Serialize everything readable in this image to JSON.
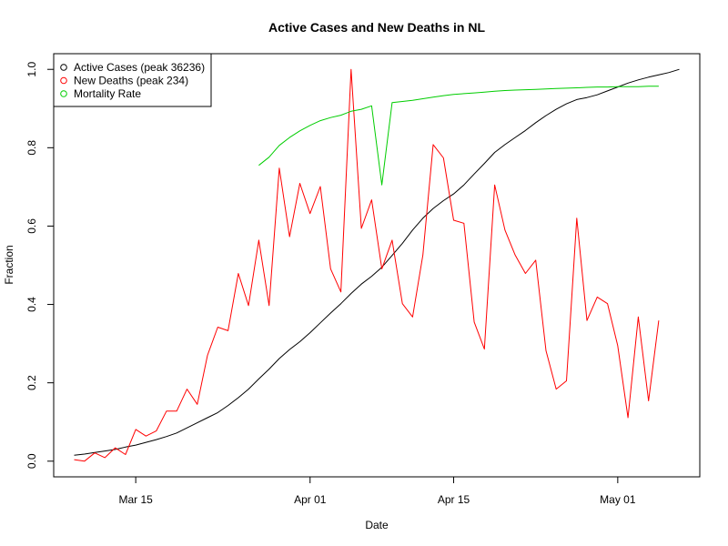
{
  "chart_data": {
    "type": "line",
    "title": "Active Cases and New Deaths in NL",
    "xlabel": "Date",
    "ylabel": "Fraction",
    "x_range": [
      "2020-03-07",
      "2020-05-09"
    ],
    "ylim": [
      -0.04,
      1.04
    ],
    "x_ticks": [
      {
        "date": "2020-03-15",
        "label": "Mar 15"
      },
      {
        "date": "2020-04-01",
        "label": "Apr 01"
      },
      {
        "date": "2020-04-15",
        "label": "Apr 15"
      },
      {
        "date": "2020-05-01",
        "label": "May 01"
      }
    ],
    "y_ticks": [
      {
        "value": 0.0,
        "label": "0.0"
      },
      {
        "value": 0.2,
        "label": "0.2"
      },
      {
        "value": 0.4,
        "label": "0.4"
      },
      {
        "value": 0.6,
        "label": "0.6"
      },
      {
        "value": 0.8,
        "label": "0.8"
      },
      {
        "value": 1.0,
        "label": "1.0"
      }
    ],
    "grid": false,
    "legend": {
      "position": "top-left"
    },
    "series": [
      {
        "name": "Active Cases (peak 36236)",
        "color": "#000000",
        "points": [
          [
            "2020-03-09",
            0.015
          ],
          [
            "2020-03-10",
            0.018
          ],
          [
            "2020-03-11",
            0.022
          ],
          [
            "2020-03-12",
            0.026
          ],
          [
            "2020-03-13",
            0.03
          ],
          [
            "2020-03-14",
            0.036
          ],
          [
            "2020-03-15",
            0.041
          ],
          [
            "2020-03-16",
            0.048
          ],
          [
            "2020-03-17",
            0.055
          ],
          [
            "2020-03-18",
            0.063
          ],
          [
            "2020-03-19",
            0.072
          ],
          [
            "2020-03-20",
            0.085
          ],
          [
            "2020-03-21",
            0.098
          ],
          [
            "2020-03-22",
            0.111
          ],
          [
            "2020-03-23",
            0.124
          ],
          [
            "2020-03-24",
            0.142
          ],
          [
            "2020-03-25",
            0.162
          ],
          [
            "2020-03-26",
            0.184
          ],
          [
            "2020-03-27",
            0.21
          ],
          [
            "2020-03-28",
            0.235
          ],
          [
            "2020-03-29",
            0.262
          ],
          [
            "2020-03-30",
            0.285
          ],
          [
            "2020-03-31",
            0.305
          ],
          [
            "2020-04-01",
            0.328
          ],
          [
            "2020-04-02",
            0.353
          ],
          [
            "2020-04-03",
            0.378
          ],
          [
            "2020-04-04",
            0.402
          ],
          [
            "2020-04-05",
            0.428
          ],
          [
            "2020-04-06",
            0.452
          ],
          [
            "2020-04-07",
            0.472
          ],
          [
            "2020-04-08",
            0.495
          ],
          [
            "2020-04-09",
            0.525
          ],
          [
            "2020-04-10",
            0.556
          ],
          [
            "2020-04-11",
            0.59
          ],
          [
            "2020-04-12",
            0.62
          ],
          [
            "2020-04-13",
            0.645
          ],
          [
            "2020-04-14",
            0.665
          ],
          [
            "2020-04-15",
            0.682
          ],
          [
            "2020-04-16",
            0.705
          ],
          [
            "2020-04-17",
            0.733
          ],
          [
            "2020-04-18",
            0.76
          ],
          [
            "2020-04-19",
            0.788
          ],
          [
            "2020-04-20",
            0.808
          ],
          [
            "2020-04-21",
            0.826
          ],
          [
            "2020-04-22",
            0.844
          ],
          [
            "2020-04-23",
            0.864
          ],
          [
            "2020-04-24",
            0.882
          ],
          [
            "2020-04-25",
            0.898
          ],
          [
            "2020-04-26",
            0.912
          ],
          [
            "2020-04-27",
            0.923
          ],
          [
            "2020-04-28",
            0.928
          ],
          [
            "2020-04-29",
            0.935
          ],
          [
            "2020-04-30",
            0.945
          ],
          [
            "2020-05-01",
            0.955
          ],
          [
            "2020-05-02",
            0.965
          ],
          [
            "2020-05-03",
            0.973
          ],
          [
            "2020-05-04",
            0.98
          ],
          [
            "2020-05-05",
            0.986
          ],
          [
            "2020-05-06",
            0.992
          ],
          [
            "2020-05-07",
            1.0
          ]
        ]
      },
      {
        "name": "New Deaths (peak 234)",
        "color": "#ff0000",
        "points": [
          [
            "2020-03-09",
            0.004
          ],
          [
            "2020-03-10",
            0.0
          ],
          [
            "2020-03-11",
            0.021
          ],
          [
            "2020-03-12",
            0.009
          ],
          [
            "2020-03-13",
            0.034
          ],
          [
            "2020-03-14",
            0.017
          ],
          [
            "2020-03-15",
            0.081
          ],
          [
            "2020-03-16",
            0.064
          ],
          [
            "2020-03-17",
            0.077
          ],
          [
            "2020-03-18",
            0.128
          ],
          [
            "2020-03-19",
            0.128
          ],
          [
            "2020-03-20",
            0.184
          ],
          [
            "2020-03-21",
            0.145
          ],
          [
            "2020-03-22",
            0.27
          ],
          [
            "2020-03-23",
            0.342
          ],
          [
            "2020-03-24",
            0.333
          ],
          [
            "2020-03-25",
            0.479
          ],
          [
            "2020-03-26",
            0.397
          ],
          [
            "2020-03-27",
            0.564
          ],
          [
            "2020-03-28",
            0.397
          ],
          [
            "2020-03-29",
            0.748
          ],
          [
            "2020-03-30",
            0.573
          ],
          [
            "2020-03-31",
            0.709
          ],
          [
            "2020-04-01",
            0.632
          ],
          [
            "2020-04-02",
            0.701
          ],
          [
            "2020-04-03",
            0.491
          ],
          [
            "2020-04-04",
            0.432
          ],
          [
            "2020-04-05",
            1.0
          ],
          [
            "2020-04-06",
            0.594
          ],
          [
            "2020-04-07",
            0.667
          ],
          [
            "2020-04-08",
            0.491
          ],
          [
            "2020-04-09",
            0.564
          ],
          [
            "2020-04-10",
            0.402
          ],
          [
            "2020-04-11",
            0.368
          ],
          [
            "2020-04-12",
            0.526
          ],
          [
            "2020-04-13",
            0.808
          ],
          [
            "2020-04-14",
            0.774
          ],
          [
            "2020-04-15",
            0.615
          ],
          [
            "2020-04-16",
            0.607
          ],
          [
            "2020-04-17",
            0.355
          ],
          [
            "2020-04-18",
            0.286
          ],
          [
            "2020-04-19",
            0.705
          ],
          [
            "2020-04-20",
            0.59
          ],
          [
            "2020-04-21",
            0.526
          ],
          [
            "2020-04-22",
            0.479
          ],
          [
            "2020-04-23",
            0.513
          ],
          [
            "2020-04-24",
            0.282
          ],
          [
            "2020-04-25",
            0.184
          ],
          [
            "2020-04-26",
            0.205
          ],
          [
            "2020-04-27",
            0.62
          ],
          [
            "2020-04-28",
            0.359
          ],
          [
            "2020-04-29",
            0.419
          ],
          [
            "2020-04-30",
            0.402
          ],
          [
            "2020-05-01",
            0.295
          ],
          [
            "2020-05-02",
            0.111
          ],
          [
            "2020-05-03",
            0.368
          ],
          [
            "2020-05-04",
            0.154
          ],
          [
            "2020-05-05",
            0.359
          ]
        ]
      },
      {
        "name": "Mortality Rate",
        "color": "#00cd00",
        "points": [
          [
            "2020-03-27",
            0.755
          ],
          [
            "2020-03-28",
            0.776
          ],
          [
            "2020-03-29",
            0.806
          ],
          [
            "2020-03-30",
            0.826
          ],
          [
            "2020-03-31",
            0.843
          ],
          [
            "2020-04-01",
            0.857
          ],
          [
            "2020-04-02",
            0.869
          ],
          [
            "2020-04-03",
            0.877
          ],
          [
            "2020-04-04",
            0.883
          ],
          [
            "2020-04-05",
            0.893
          ],
          [
            "2020-04-06",
            0.898
          ],
          [
            "2020-04-07",
            0.907
          ],
          [
            "2020-04-08",
            0.705
          ],
          [
            "2020-04-09",
            0.915
          ],
          [
            "2020-04-10",
            0.918
          ],
          [
            "2020-04-11",
            0.921
          ],
          [
            "2020-04-12",
            0.925
          ],
          [
            "2020-04-13",
            0.929
          ],
          [
            "2020-04-14",
            0.933
          ],
          [
            "2020-04-15",
            0.936
          ],
          [
            "2020-04-16",
            0.938
          ],
          [
            "2020-04-17",
            0.94
          ],
          [
            "2020-04-18",
            0.942
          ],
          [
            "2020-04-19",
            0.944
          ],
          [
            "2020-04-20",
            0.946
          ],
          [
            "2020-04-21",
            0.947
          ],
          [
            "2020-04-22",
            0.948
          ],
          [
            "2020-04-23",
            0.949
          ],
          [
            "2020-04-24",
            0.95
          ],
          [
            "2020-04-25",
            0.951
          ],
          [
            "2020-04-26",
            0.952
          ],
          [
            "2020-04-27",
            0.953
          ],
          [
            "2020-04-28",
            0.954
          ],
          [
            "2020-04-29",
            0.955
          ],
          [
            "2020-04-30",
            0.955
          ],
          [
            "2020-05-01",
            0.956
          ],
          [
            "2020-05-02",
            0.956
          ],
          [
            "2020-05-03",
            0.956
          ],
          [
            "2020-05-04",
            0.957
          ],
          [
            "2020-05-05",
            0.957
          ]
        ]
      }
    ]
  }
}
